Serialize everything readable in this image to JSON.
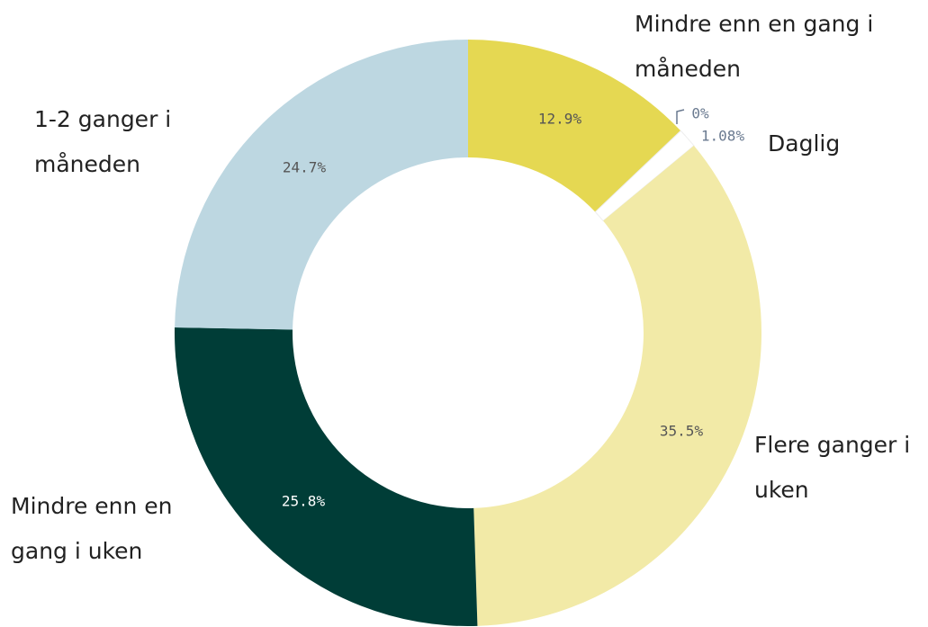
{
  "chart_data": {
    "type": "donut",
    "categories": [
      "Mindre enn en gang i måneden",
      null,
      "Daglig",
      "Flere ganger i uken",
      "Mindre enn en gang i uken",
      "1-2 ganger i måneden"
    ],
    "values": [
      12.9,
      0,
      1.08,
      35.5,
      25.8,
      24.7
    ],
    "value_labels": [
      "12.9%",
      "0%",
      "1.08%",
      "35.5%",
      "25.8%",
      "24.7%"
    ],
    "colors": [
      "#e5d852",
      "#d9cf6a",
      "#ffffff",
      "#f2eaa7",
      "#003d37",
      "#bdd7e1"
    ]
  }
}
